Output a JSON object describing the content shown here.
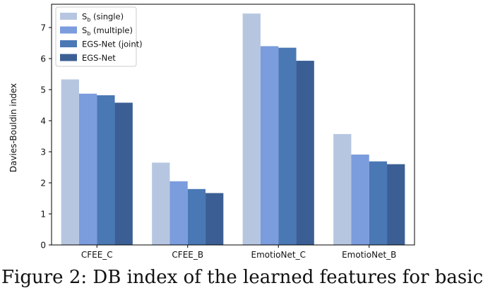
{
  "chart_data": {
    "type": "bar",
    "title": "",
    "xlabel": "",
    "ylabel": "Davies-Bouldin index",
    "categories": [
      "CFEE_C",
      "CFEE_B",
      "EmotioNet_C",
      "EmotioNet_B"
    ],
    "ylim": [
      0,
      7.75
    ],
    "yticks": [
      0,
      1,
      2,
      3,
      4,
      5,
      6,
      7
    ],
    "grid": false,
    "legend_position": "top-left",
    "series": [
      {
        "name": "S_b (single)",
        "name_main": "S",
        "name_sub": "b",
        "name_rest": " (single)",
        "color": "#b7c6e0",
        "values": [
          5.33,
          2.65,
          7.45,
          3.57
        ]
      },
      {
        "name": "S_b (multiple)",
        "name_main": "S",
        "name_sub": "b",
        "name_rest": " (multiple)",
        "color": "#7b9cdd",
        "values": [
          4.87,
          2.05,
          6.4,
          2.91
        ]
      },
      {
        "name": "EGS-Net (joint)",
        "name_main": "EGS-Net (joint)",
        "name_sub": "",
        "name_rest": "",
        "color": "#4a78b5",
        "values": [
          4.82,
          1.8,
          6.35,
          2.69
        ]
      },
      {
        "name": "EGS-Net",
        "name_main": "EGS-Net",
        "name_sub": "",
        "name_rest": "",
        "color": "#3b5f94",
        "values": [
          4.58,
          1.67,
          5.93,
          2.6
        ]
      }
    ]
  },
  "caption": "Figure 2: DB index of the learned features for basic"
}
